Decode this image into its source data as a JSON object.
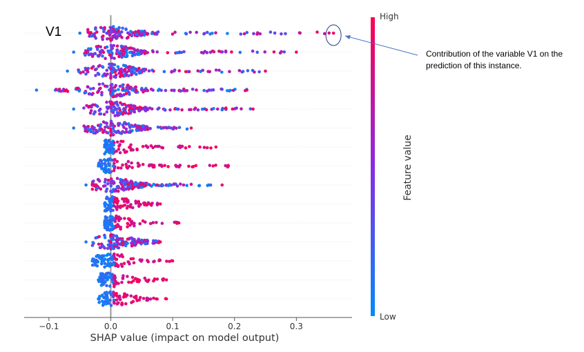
{
  "chart_data": {
    "type": "scatter",
    "subtype": "shap-beeswarm",
    "xlabel": "SHAP value (impact on model output)",
    "ylabel": "",
    "xlim": [
      -0.14,
      0.39
    ],
    "x_ticks": [
      -0.1,
      0.0,
      0.1,
      0.2,
      0.3
    ],
    "x_tick_labels": [
      "−0.1",
      "0.0",
      "0.1",
      "0.2",
      "0.3"
    ],
    "grid": true,
    "zero_line": true,
    "features": [
      {
        "label": "V1",
        "min": -0.05,
        "max": 0.36
      },
      {
        "label": "",
        "min": -0.06,
        "max": 0.3
      },
      {
        "label": "",
        "min": -0.07,
        "max": 0.25
      },
      {
        "label": "",
        "min": -0.12,
        "max": 0.22
      },
      {
        "label": "",
        "min": -0.06,
        "max": 0.23
      },
      {
        "label": "",
        "min": -0.06,
        "max": 0.13
      },
      {
        "label": "",
        "min": -0.01,
        "max": 0.17
      },
      {
        "label": "",
        "min": -0.02,
        "max": 0.19
      },
      {
        "label": "",
        "min": -0.04,
        "max": 0.18
      },
      {
        "label": "",
        "min": -0.01,
        "max": 0.08
      },
      {
        "label": "",
        "min": -0.01,
        "max": 0.11
      },
      {
        "label": "",
        "min": -0.04,
        "max": 0.08
      },
      {
        "label": "",
        "min": -0.03,
        "max": 0.1
      },
      {
        "label": "",
        "min": -0.02,
        "max": 0.09
      },
      {
        "label": "",
        "min": -0.02,
        "max": 0.09
      }
    ],
    "highlight": {
      "feature": "V1",
      "x": 0.36
    },
    "colorbar": {
      "label": "Feature value",
      "high_label": "High",
      "low_label": "Low",
      "high_color": "#ff0052",
      "mid_color": "#8a2be2",
      "low_color": "#008bfb"
    }
  },
  "annotation": {
    "text": "Contribution of the variable V1 on the prediction of this instance."
  }
}
